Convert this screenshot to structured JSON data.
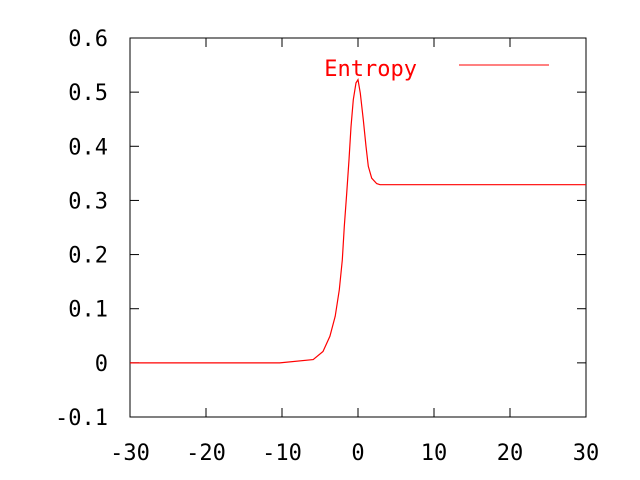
{
  "chart_data": {
    "type": "line",
    "title": "",
    "xlabel": "",
    "ylabel": "",
    "xlim": [
      -30,
      30
    ],
    "ylim": [
      -0.1,
      0.6
    ],
    "xticks": [
      "-30",
      "-20",
      "-10",
      "0",
      "10",
      "20",
      "30"
    ],
    "xtick_values": [
      -30,
      -20,
      -10,
      0,
      10,
      20,
      30
    ],
    "yticks": [
      "-0.1",
      "0",
      "0.1",
      "0.2",
      "0.3",
      "0.4",
      "0.5",
      "0.6"
    ],
    "ytick_values": [
      -0.1,
      0,
      0.1,
      0.2,
      0.3,
      0.4,
      0.5,
      0.6
    ],
    "grid": false,
    "legend": "top-right",
    "series": [
      {
        "name": "Entropy",
        "color": "#ff0000",
        "x": [
          -30,
          -10.3,
          -5.9,
          -4.6,
          -3.7,
          -3.0,
          -2.46,
          -2.07,
          -1.8,
          -1.49,
          -1.18,
          -0.92,
          -0.62,
          -0.26,
          0,
          0.3,
          0.7,
          1.05,
          1.36,
          1.8,
          2.46,
          2.9,
          30
        ],
        "y": [
          0,
          0,
          0.006,
          0.021,
          0.049,
          0.086,
          0.135,
          0.19,
          0.252,
          0.313,
          0.375,
          0.436,
          0.486,
          0.517,
          0.523,
          0.498,
          0.449,
          0.4,
          0.363,
          0.341,
          0.331,
          0.329,
          0.329
        ]
      }
    ]
  }
}
